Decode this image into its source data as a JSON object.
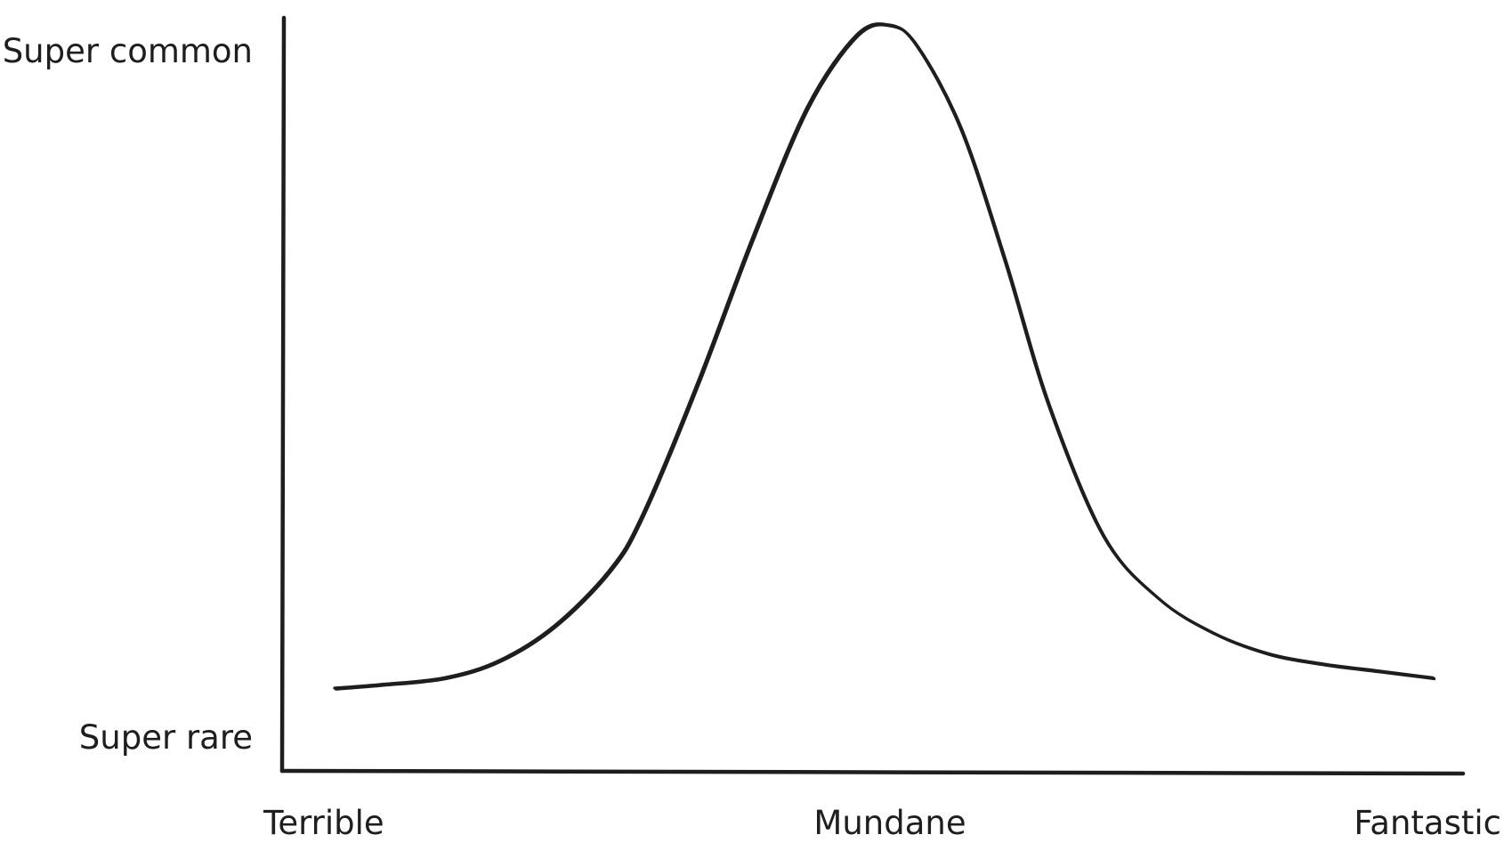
{
  "chart_data": {
    "type": "line",
    "title": "",
    "xlabel": "",
    "ylabel": "",
    "x_tick_labels": [
      "Terrible",
      "Mundane",
      "Fantastic"
    ],
    "y_tick_labels": [
      "Super rare",
      "Super common"
    ],
    "xlim": [
      0,
      1
    ],
    "ylim": [
      0,
      1
    ],
    "grid": false,
    "legend": "none",
    "stroke_color": "#1e1e1e",
    "series": [
      {
        "x": [
          0.0,
          0.04,
          0.1,
          0.15,
          0.2,
          0.25,
          0.28,
          0.33,
          0.38,
          0.43,
          0.475,
          0.505,
          0.53,
          0.57,
          0.61,
          0.65,
          0.7,
          0.75,
          0.8,
          0.85,
          0.9,
          0.95,
          1.0
        ],
        "y": [
          0.04,
          0.045,
          0.055,
          0.08,
          0.13,
          0.21,
          0.29,
          0.48,
          0.69,
          0.88,
          0.985,
          1.0,
          0.97,
          0.85,
          0.66,
          0.45,
          0.26,
          0.17,
          0.12,
          0.09,
          0.075,
          0.065,
          0.055
        ]
      }
    ]
  }
}
